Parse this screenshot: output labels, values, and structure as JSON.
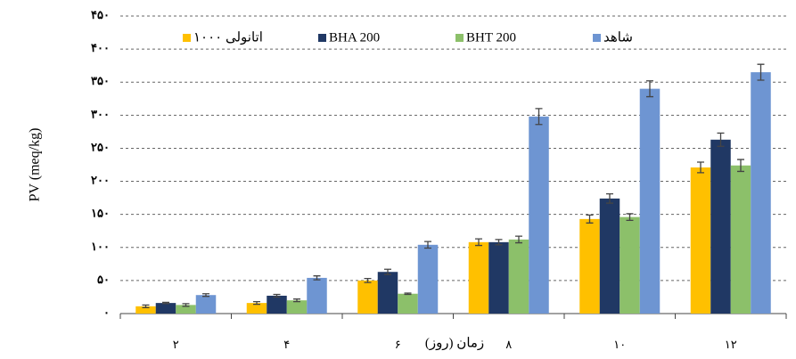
{
  "chart_data": {
    "type": "bar",
    "y_axis_label": "PV (meq/kg)",
    "x_axis_label": "زمان (روز)",
    "categories": [
      "۲",
      "۴",
      "۶",
      "۸",
      "۱۰",
      "۱۲"
    ],
    "series": [
      {
        "name": "اتانولی ۱۰۰۰",
        "color": "#ffc000",
        "values": [
          11,
          16,
          50,
          108,
          143,
          221
        ],
        "errors": [
          2,
          2,
          3,
          5,
          6,
          8
        ]
      },
      {
        "name": "BHA 200",
        "color": "#203864",
        "values": [
          16,
          27,
          63,
          108,
          174,
          263
        ],
        "errors": [
          1,
          2,
          4,
          4,
          7,
          10
        ]
      },
      {
        "name": "BHT 200",
        "color": "#8cc06a",
        "values": [
          13,
          20,
          30,
          112,
          146,
          224
        ],
        "errors": [
          2,
          2,
          1,
          5,
          5,
          9
        ]
      },
      {
        "name": "شاهد",
        "color": "#6e95d2",
        "values": [
          28,
          54,
          104,
          298,
          340,
          365
        ],
        "errors": [
          2,
          3,
          5,
          12,
          12,
          12
        ]
      }
    ],
    "ylim": [
      0,
      450
    ],
    "yticks": [
      {
        "value": 0,
        "label": "۰"
      },
      {
        "value": 50,
        "label": "۵۰"
      },
      {
        "value": 100,
        "label": "۱۰۰"
      },
      {
        "value": 150,
        "label": "۱۵۰"
      },
      {
        "value": 200,
        "label": "۲۰۰"
      },
      {
        "value": 250,
        "label": "۲۵۰"
      },
      {
        "value": 300,
        "label": "۳۰۰"
      },
      {
        "value": 350,
        "label": "۳۵۰"
      },
      {
        "value": 400,
        "label": "۴۰۰"
      },
      {
        "value": 450,
        "label": "۴۵۰"
      }
    ],
    "grid": true,
    "legend": "top"
  }
}
